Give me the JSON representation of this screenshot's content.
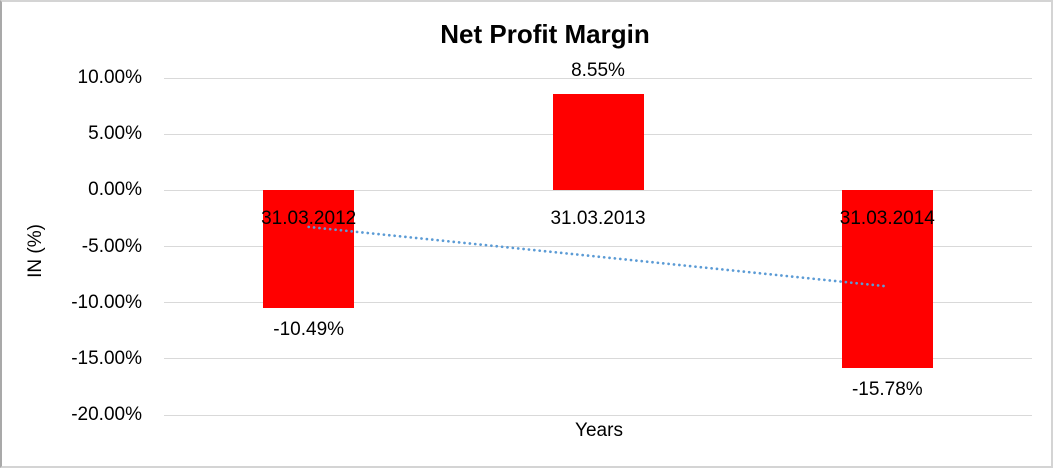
{
  "chart_data": {
    "type": "bar",
    "title": "Net Profit Margin",
    "xlabel": "Years",
    "ylabel": "IN (%)",
    "categories": [
      "31.03.2012",
      "31.03.2013",
      "31.03.2014"
    ],
    "series": [
      {
        "name": "Net Profit Margin",
        "color": "#FF0000",
        "values": [
          -10.49,
          8.55,
          -15.78
        ]
      }
    ],
    "data_labels": [
      "-10.49%",
      "8.55%",
      "-15.78%"
    ],
    "y_ticks": [
      10,
      5,
      0,
      -5,
      -10,
      -15,
      -20
    ],
    "y_tick_labels": [
      "10.00%",
      "5.00%",
      "0.00%",
      "-5.00%",
      "-10.00%",
      "-15.00%",
      "-20.00%"
    ],
    "ylim": [
      -20,
      10
    ],
    "grid": "horizontal",
    "legend": "none",
    "trendline": {
      "type": "linear",
      "style": "dotted",
      "color": "#5B9BD5",
      "start_value": -3.26,
      "end_value": -8.55
    }
  },
  "colors": {
    "bar": "#FF0000",
    "gridline": "#D9D9D9",
    "trendline": "#5B9BD5",
    "text": "#000000",
    "background": "#FFFFFF",
    "border": "#C9C9C9"
  }
}
